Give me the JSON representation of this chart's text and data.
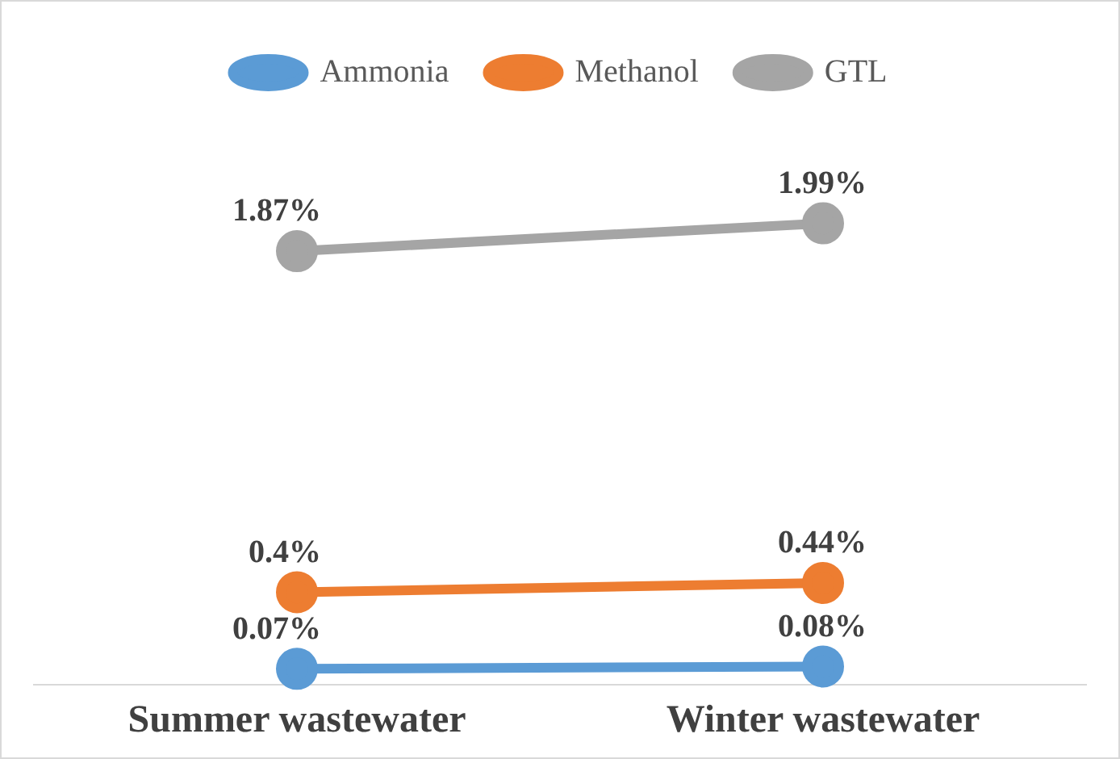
{
  "chart_data": {
    "type": "line",
    "categories": [
      "Summer wastewater",
      "Winter wastewater"
    ],
    "series": [
      {
        "name": "Ammonia",
        "color": "#5b9bd5",
        "values": [
          0.07,
          0.08
        ],
        "value_labels": [
          "0.07%",
          "0.08%"
        ]
      },
      {
        "name": "Methanol",
        "color": "#ed7d31",
        "values": [
          0.4,
          0.44
        ],
        "value_labels": [
          "0.4%",
          "0.44%"
        ]
      },
      {
        "name": "GTL",
        "color": "#a5a5a5",
        "values": [
          1.87,
          1.99
        ],
        "value_labels": [
          "1.87%",
          "1.99%"
        ]
      }
    ],
    "tick_labels": "x",
    "grid": false,
    "legend": "top",
    "marker": "circle",
    "line_style": "solid"
  }
}
